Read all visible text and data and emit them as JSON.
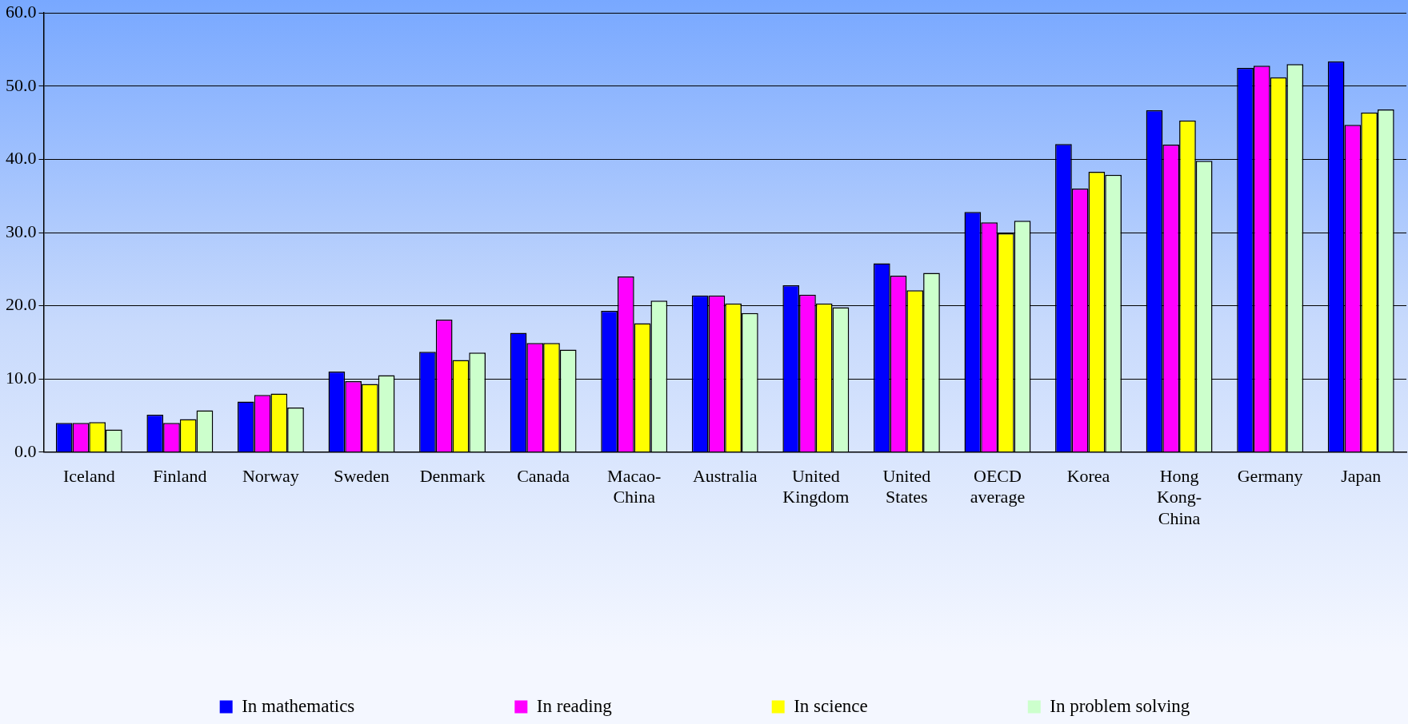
{
  "chart_data": {
    "type": "bar",
    "categories": [
      "Iceland",
      "Finland",
      "Norway",
      "Sweden",
      "Denmark",
      "Canada",
      "Macao-China",
      "Australia",
      "United Kingdom",
      "United States",
      "OECD average",
      "Korea",
      "Hong Kong-China",
      "Germany",
      "Japan"
    ],
    "series": [
      {
        "name": "In mathematics",
        "color": "#0000ff",
        "values": [
          4.0,
          5.1,
          6.9,
          11.0,
          13.7,
          16.3,
          19.3,
          21.4,
          22.8,
          25.8,
          32.8,
          42.1,
          46.7,
          52.5,
          53.4
        ]
      },
      {
        "name": "In reading",
        "color": "#ff00ff",
        "values": [
          4.0,
          4.0,
          7.8,
          9.7,
          18.1,
          14.9,
          24.0,
          21.4,
          21.5,
          24.1,
          31.4,
          36.0,
          42.0,
          52.8,
          44.7
        ]
      },
      {
        "name": "In science",
        "color": "#ffff00",
        "values": [
          4.1,
          4.5,
          8.0,
          9.3,
          12.6,
          14.9,
          17.6,
          20.3,
          20.3,
          22.1,
          29.9,
          38.3,
          45.3,
          51.2,
          46.4
        ]
      },
      {
        "name": "In problem solving",
        "color": "#ccffcc",
        "values": [
          3.1,
          5.7,
          6.1,
          10.5,
          13.6,
          14.0,
          20.7,
          19.0,
          19.8,
          24.5,
          31.6,
          37.9,
          39.8,
          53.0,
          46.8
        ]
      }
    ],
    "ylim": [
      0,
      60
    ],
    "yticks": [
      {
        "value": 0,
        "label": "0.0"
      },
      {
        "value": 10,
        "label": "10.0"
      },
      {
        "value": 20,
        "label": "20.0"
      },
      {
        "value": 30,
        "label": "30.0"
      },
      {
        "value": 40,
        "label": "40.0"
      },
      {
        "value": 50,
        "label": "50.0"
      },
      {
        "value": 60,
        "label": "60.0"
      }
    ],
    "grid": "y",
    "legend": "bottom"
  }
}
